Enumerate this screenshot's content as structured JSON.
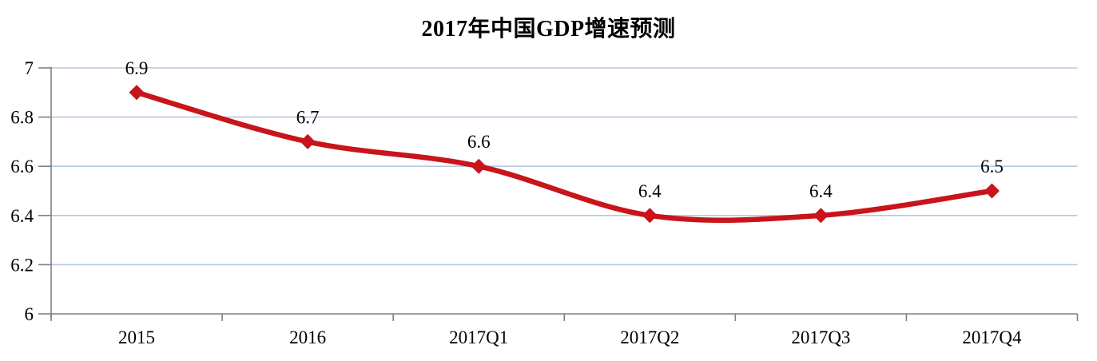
{
  "title": "2017年中国GDP增速预测",
  "chart_data": {
    "type": "line",
    "title": "2017年中国GDP增速预测",
    "categories": [
      "2015",
      "2016",
      "2017Q1",
      "2017Q2",
      "2017Q3",
      "2017Q4"
    ],
    "series": [
      {
        "name": "GDP增速",
        "values": [
          6.9,
          6.7,
          6.6,
          6.4,
          6.4,
          6.5
        ],
        "point_labels": [
          "6.9",
          "6.7",
          "6.6",
          "6.4",
          "6.4",
          "6.5"
        ]
      }
    ],
    "ylim": [
      6,
      7
    ],
    "yticks": [
      6,
      6.2,
      6.4,
      6.6,
      6.8,
      7
    ],
    "ytick_labels": [
      "6",
      "6.2",
      "6.4",
      "6.6",
      "6.8",
      "7"
    ],
    "xlabel": "",
    "ylabel": "",
    "grid": "horizontal",
    "legend_position": "none",
    "line_style": "smooth",
    "marker": "diamond",
    "colors": {
      "line": "#c8141a",
      "marker": "#c8141a",
      "grid": "#b5c8e1",
      "axis": "#808080",
      "text": "#000000",
      "background": "#ffffff"
    }
  }
}
